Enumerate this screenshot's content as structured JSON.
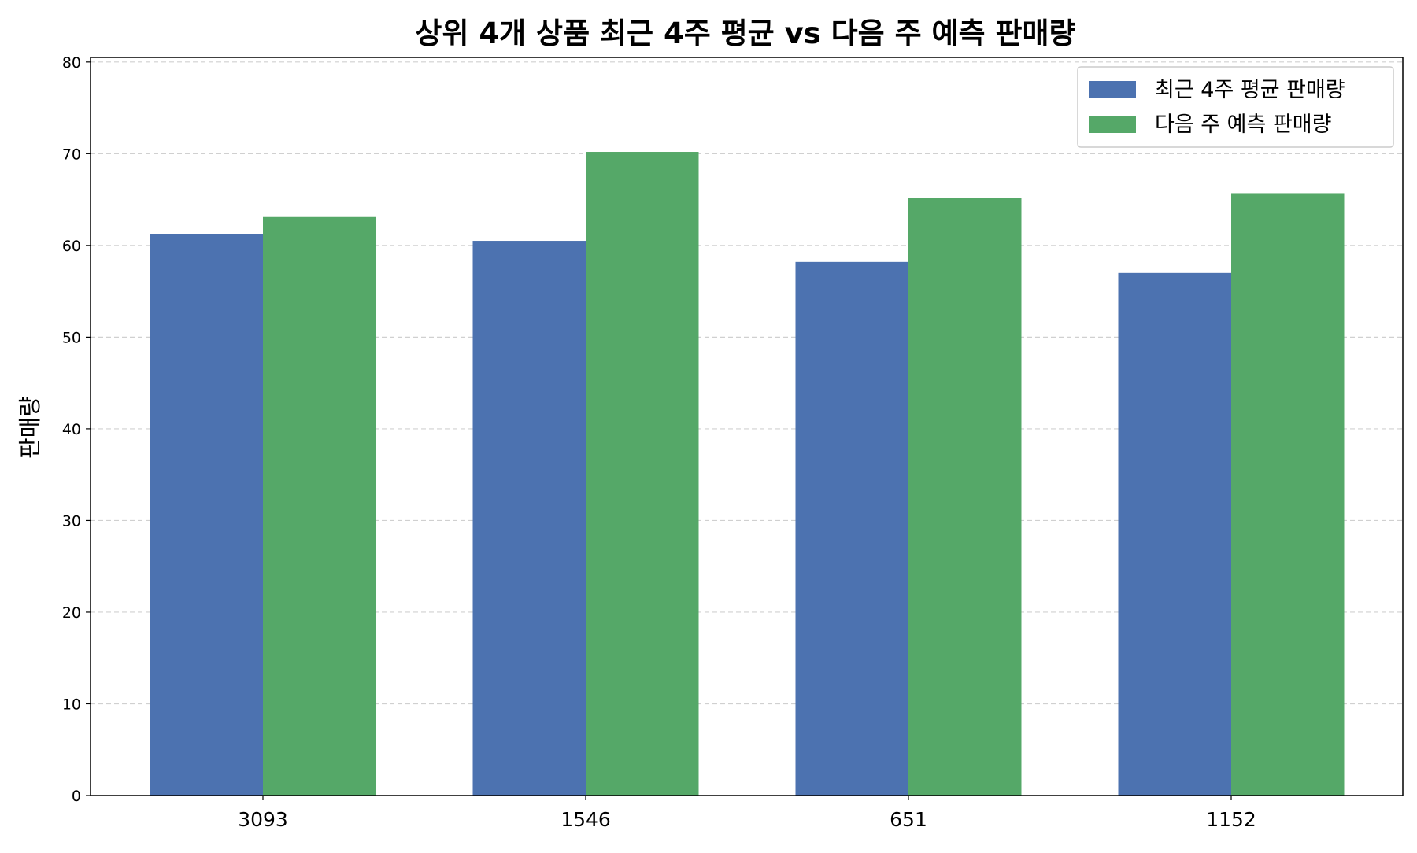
{
  "chart_data": {
    "type": "bar",
    "title": "상위 4개 상품 최근 4주 평균 vs 다음 주 예측 판매량",
    "xlabel": "",
    "ylabel": "판매량",
    "categories": [
      "3093",
      "1546",
      "651",
      "1152"
    ],
    "series": [
      {
        "name": "최근 4주 평균 판매량",
        "values": [
          61.2,
          60.5,
          58.2,
          57.0
        ],
        "color": "#4c72b0"
      },
      {
        "name": "다음 주 예측 판매량",
        "values": [
          63.1,
          70.2,
          65.2,
          65.7
        ],
        "color": "#55a868"
      }
    ],
    "ylim": [
      0,
      80.5
    ],
    "yticks": [
      0,
      10,
      20,
      30,
      40,
      50,
      60,
      70,
      80
    ],
    "grid": "y-dashed",
    "legend_position": "top-right"
  }
}
